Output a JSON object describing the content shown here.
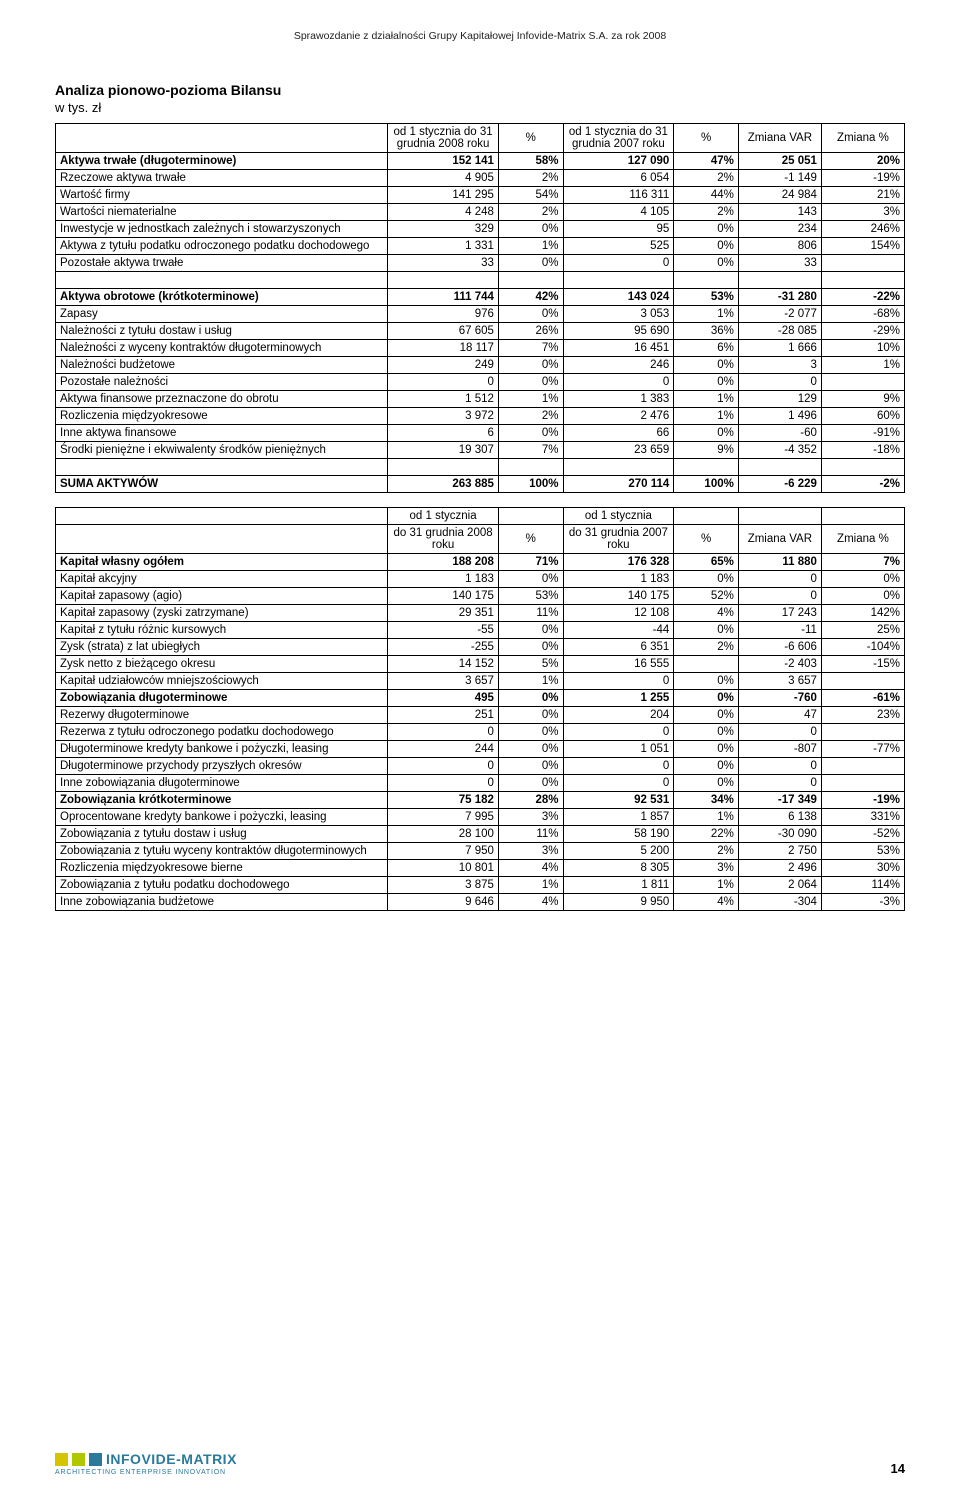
{
  "header": "Sprawozdanie z działalności Grupy Kapitałowej Infovide-Matrix S.A. za rok 2008",
  "title": "Analiza pionowo-pozioma Bilansu",
  "subtitle": "w tys. zł",
  "pageNumber": "14",
  "logo": {
    "name": "INFOVIDE-MATRIX",
    "tag": "ARCHITECTING ENTERPRISE INNOVATION"
  },
  "colors": {
    "logo_sq1": "#d6c400",
    "logo_sq2": "#b0c800",
    "logo_sq3": "#2b7a9b"
  },
  "t1": {
    "head": {
      "c1": "od 1 stycznia do 31 grudnia 2008 roku",
      "c2": "%",
      "c3": "od 1 stycznia do 31 grudnia 2007 roku",
      "c4": "%",
      "c5": "Zmiana VAR",
      "c6": "Zmiana %"
    },
    "rows": [
      {
        "b": true,
        "l": "Aktywa trwałe (długoterminowe)",
        "v1": "152 141",
        "p1": "58%",
        "v2": "127 090",
        "p2": "47%",
        "var": "25 051",
        "pct": "20%"
      },
      {
        "l": "Rzeczowe aktywa trwałe",
        "v1": "4 905",
        "p1": "2%",
        "v2": "6 054",
        "p2": "2%",
        "var": "-1 149",
        "pct": "-19%"
      },
      {
        "l": "Wartość firmy",
        "v1": "141 295",
        "p1": "54%",
        "v2": "116 311",
        "p2": "44%",
        "var": "24 984",
        "pct": "21%"
      },
      {
        "l": "Wartości niematerialne",
        "v1": "4 248",
        "p1": "2%",
        "v2": "4 105",
        "p2": "2%",
        "var": "143",
        "pct": "3%"
      },
      {
        "l": "Inwestycje w jednostkach zależnych i stowarzyszonych",
        "v1": "329",
        "p1": "0%",
        "v2": "95",
        "p2": "0%",
        "var": "234",
        "pct": "246%"
      },
      {
        "l": "Aktywa z tytułu podatku odroczonego podatku dochodowego",
        "v1": "1 331",
        "p1": "1%",
        "v2": "525",
        "p2": "0%",
        "var": "806",
        "pct": "154%"
      },
      {
        "l": "Pozostałe aktywa  trwałe",
        "v1": "33",
        "p1": "0%",
        "v2": "0",
        "p2": "0%",
        "var": "33",
        "pct": ""
      }
    ],
    "rows2": [
      {
        "b": true,
        "l": "Aktywa obrotowe (krótkoterminowe)",
        "v1": "111 744",
        "p1": "42%",
        "v2": "143 024",
        "p2": "53%",
        "var": "-31 280",
        "pct": "-22%"
      },
      {
        "l": "Zapasy",
        "v1": "976",
        "p1": "0%",
        "v2": "3 053",
        "p2": "1%",
        "var": "-2 077",
        "pct": "-68%"
      },
      {
        "l": "Należności z tytułu dostaw i usług",
        "v1": "67 605",
        "p1": "26%",
        "v2": "95 690",
        "p2": "36%",
        "var": "-28 085",
        "pct": "-29%"
      },
      {
        "l": "Należności z wyceny kontraktów długoterminowych",
        "v1": "18 117",
        "p1": "7%",
        "v2": "16 451",
        "p2": "6%",
        "var": "1 666",
        "pct": "10%"
      },
      {
        "l": "Należności budżetowe",
        "v1": "249",
        "p1": "0%",
        "v2": "246",
        "p2": "0%",
        "var": "3",
        "pct": "1%"
      },
      {
        "l": "Pozostałe należności",
        "v1": "0",
        "p1": "0%",
        "v2": "0",
        "p2": "0%",
        "var": "0",
        "pct": ""
      },
      {
        "l": "Aktywa finansowe przeznaczone do obrotu",
        "v1": "1 512",
        "p1": "1%",
        "v2": "1 383",
        "p2": "1%",
        "var": "129",
        "pct": "9%"
      },
      {
        "l": "Rozliczenia międzyokresowe",
        "v1": "3 972",
        "p1": "2%",
        "v2": "2 476",
        "p2": "1%",
        "var": "1 496",
        "pct": "60%"
      },
      {
        "l": "Inne aktywa finansowe",
        "v1": "6",
        "p1": "0%",
        "v2": "66",
        "p2": "0%",
        "var": "-60",
        "pct": "-91%"
      },
      {
        "l": "Środki pieniężne i ekwiwalenty środków pieniężnych",
        "v1": "19 307",
        "p1": "7%",
        "v2": "23 659",
        "p2": "9%",
        "var": "-4 352",
        "pct": "-18%"
      }
    ],
    "sum": {
      "b": true,
      "l": "SUMA AKTYWÓW",
      "v1": "263 885",
      "p1": "100%",
      "v2": "270 114",
      "p2": "100%",
      "var": "-6 229",
      "pct": "-2%"
    }
  },
  "t2": {
    "head": {
      "top1": "od 1 stycznia",
      "top2": "od 1 stycznia",
      "c1": "do 31 grudnia 2008 roku",
      "c2": "%",
      "c3": "do 31 grudnia 2007 roku",
      "c4": "%",
      "c5": "Zmiana VAR",
      "c6": "Zmiana %"
    },
    "rows": [
      {
        "b": true,
        "l": "Kapitał własny ogółem",
        "v1": "188 208",
        "p1": "71%",
        "v2": "176 328",
        "p2": "65%",
        "var": "11 880",
        "pct": "7%"
      },
      {
        "l": "Kapitał akcyjny",
        "v1": "1 183",
        "p1": "0%",
        "v2": "1 183",
        "p2": "0%",
        "var": "0",
        "pct": "0%"
      },
      {
        "l": "Kapitał zapasowy (agio)",
        "v1": "140 175",
        "p1": "53%",
        "v2": "140 175",
        "p2": "52%",
        "var": "0",
        "pct": "0%"
      },
      {
        "l": "Kapitał zapasowy (zyski zatrzymane)",
        "v1": "29 351",
        "p1": "11%",
        "v2": "12 108",
        "p2": "4%",
        "var": "17 243",
        "pct": "142%"
      },
      {
        "l": "Kapitał z tytułu różnic kursowych",
        "v1": "-55",
        "p1": "0%",
        "v2": "-44",
        "p2": "0%",
        "var": "-11",
        "pct": "25%"
      },
      {
        "l": "Zysk (strata) z lat ubiegłych",
        "v1": "-255",
        "p1": "0%",
        "v2": "6 351",
        "p2": "2%",
        "var": "-6 606",
        "pct": "-104%"
      },
      {
        "l": "Zysk netto z bieżącego okresu",
        "v1": "14 152",
        "p1": "5%",
        "v2": "16 555",
        "p2": "",
        "var": "-2 403",
        "pct": "-15%"
      },
      {
        "l": "Kapitał udziałowców mniejszościowych",
        "v1": "3 657",
        "p1": "1%",
        "v2": "0",
        "p2": "0%",
        "var": "3 657",
        "pct": ""
      },
      {
        "b": true,
        "l": "Zobowiązania długoterminowe",
        "v1": "495",
        "p1": "0%",
        "v2": "1 255",
        "p2": "0%",
        "var": "-760",
        "pct": "-61%"
      },
      {
        "l": "Rezerwy długoterminowe",
        "v1": "251",
        "p1": "0%",
        "v2": "204",
        "p2": "0%",
        "var": "47",
        "pct": "23%"
      },
      {
        "l": "Rezerwa z tytułu odroczonego podatku dochodowego",
        "v1": "0",
        "p1": "0%",
        "v2": "0",
        "p2": "0%",
        "var": "0",
        "pct": ""
      },
      {
        "l": "Długoterminowe kredyty bankowe i pożyczki, leasing",
        "v1": "244",
        "p1": "0%",
        "v2": "1 051",
        "p2": "0%",
        "var": "-807",
        "pct": "-77%"
      },
      {
        "l": "Długoterminowe przychody przyszłych okresów",
        "v1": "0",
        "p1": "0%",
        "v2": "0",
        "p2": "0%",
        "var": "0",
        "pct": ""
      },
      {
        "l": "Inne zobowiązania długoterminowe",
        "v1": "0",
        "p1": "0%",
        "v2": "0",
        "p2": "0%",
        "var": "0",
        "pct": ""
      },
      {
        "b": true,
        "l": "Zobowiązania krótkoterminowe",
        "v1": "75 182",
        "p1": "28%",
        "v2": "92 531",
        "p2": "34%",
        "var": "-17 349",
        "pct": "-19%"
      },
      {
        "l": "Oprocentowane kredyty bankowe i pożyczki, leasing",
        "v1": "7 995",
        "p1": "3%",
        "v2": "1 857",
        "p2": "1%",
        "var": "6 138",
        "pct": "331%"
      },
      {
        "l": "Zobowiązania z tytułu dostaw i usług",
        "v1": "28 100",
        "p1": "11%",
        "v2": "58 190",
        "p2": "22%",
        "var": "-30 090",
        "pct": "-52%"
      },
      {
        "l": "Zobowiązania  z tytułu wyceny kontraktów długoterminowych",
        "v1": "7 950",
        "p1": "3%",
        "v2": "5 200",
        "p2": "2%",
        "var": "2 750",
        "pct": "53%"
      },
      {
        "l": "Rozliczenia międzyokresowe bierne",
        "v1": "10 801",
        "p1": "4%",
        "v2": "8 305",
        "p2": "3%",
        "var": "2 496",
        "pct": "30%"
      },
      {
        "l": "Zobowiązania z tytułu podatku dochodowego",
        "v1": "3 875",
        "p1": "1%",
        "v2": "1 811",
        "p2": "1%",
        "var": "2 064",
        "pct": "114%"
      },
      {
        "l": "Inne zobowiązania budżetowe",
        "v1": "9 646",
        "p1": "4%",
        "v2": "9 950",
        "p2": "4%",
        "var": "-304",
        "pct": "-3%"
      }
    ]
  }
}
